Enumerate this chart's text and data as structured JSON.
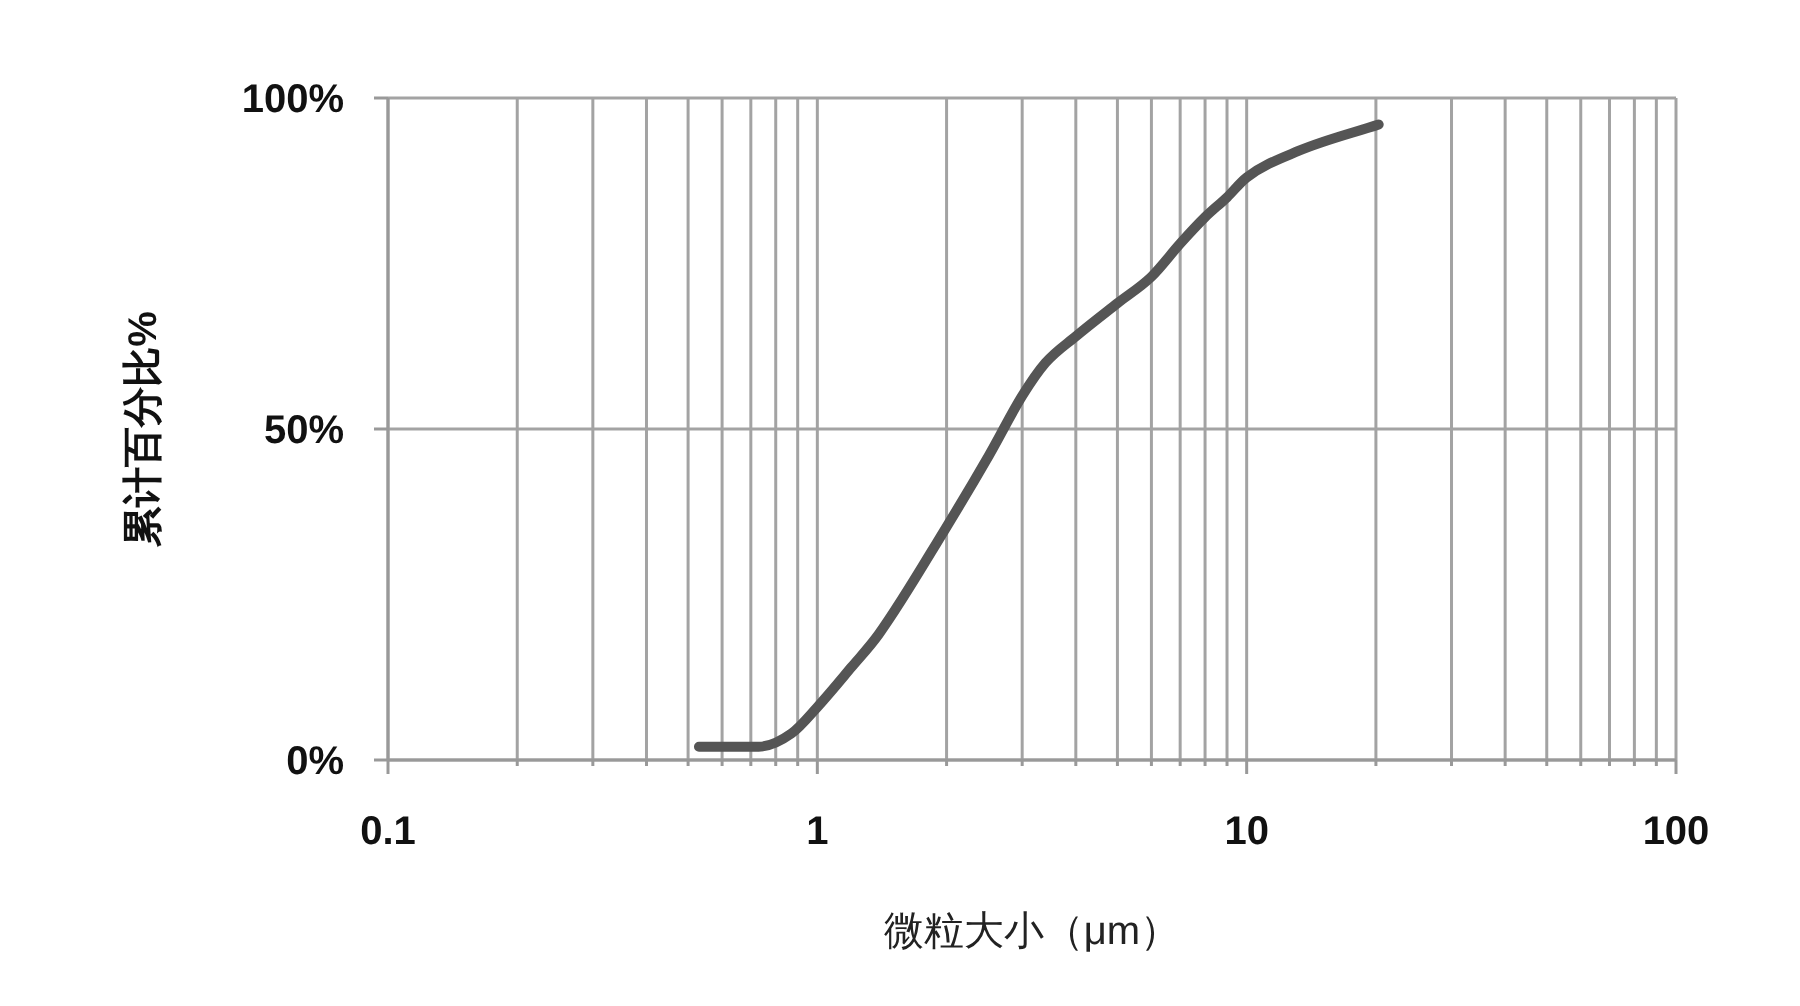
{
  "chart_data": {
    "type": "line",
    "xlabel": "微粒大小（μm）",
    "ylabel": "累计百分比%",
    "log": "x",
    "xlim": [
      0.1,
      100
    ],
    "ylim": [
      0,
      100
    ],
    "xticks": [
      {
        "value": 0.1,
        "label": "0.1"
      },
      {
        "value": 0.2,
        "label": null
      },
      {
        "value": 0.3,
        "label": null
      },
      {
        "value": 0.4,
        "label": null
      },
      {
        "value": 0.5,
        "label": null
      },
      {
        "value": 0.6,
        "label": null
      },
      {
        "value": 0.7,
        "label": null
      },
      {
        "value": 0.8,
        "label": null
      },
      {
        "value": 0.9,
        "label": null
      },
      1,
      {
        "value": 2,
        "label": null
      },
      {
        "value": 3,
        "label": null
      },
      {
        "value": 4,
        "label": null
      },
      {
        "value": 5,
        "label": null
      },
      {
        "value": 6,
        "label": null
      },
      {
        "value": 7,
        "label": null
      },
      {
        "value": 8,
        "label": null
      },
      {
        "value": 9,
        "label": null
      },
      10,
      {
        "value": 20,
        "label": null
      },
      {
        "value": 30,
        "label": null
      },
      {
        "value": 40,
        "label": null
      },
      {
        "value": 50,
        "label": null
      },
      {
        "value": 60,
        "label": null
      },
      {
        "value": 70,
        "label": null
      },
      {
        "value": 80,
        "label": null
      },
      {
        "value": 90,
        "label": null
      },
      100
    ],
    "yticks": [
      {
        "value": 0,
        "label": "0%"
      },
      {
        "value": 50,
        "label": "50%"
      },
      {
        "value": 100,
        "label": "100%"
      }
    ],
    "grid": true,
    "series": [
      {
        "color": "#555555",
        "x": [
          0.53,
          0.73,
          0.87,
          1.0,
          1.2,
          1.39,
          1.99,
          2.51,
          3,
          3.4,
          4,
          5,
          6,
          7,
          8,
          9,
          10,
          13.2,
          20.3
        ],
        "values": [
          2,
          2,
          4,
          8,
          14,
          19,
          35,
          46,
          55,
          60,
          64,
          69,
          73,
          78,
          82,
          85,
          88,
          92,
          96
        ]
      }
    ]
  }
}
